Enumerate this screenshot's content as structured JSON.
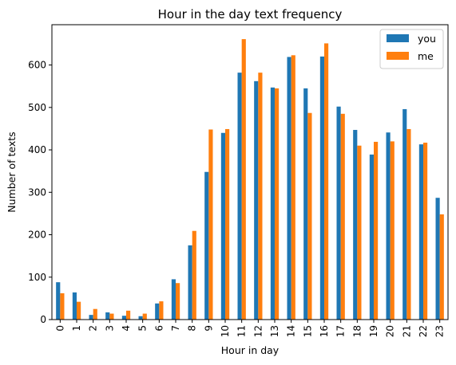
{
  "chart_data": {
    "type": "bar",
    "title": "Hour in the day text frequency",
    "xlabel": "Hour in day",
    "ylabel": "Number of texts",
    "ylim": [
      0,
      695
    ],
    "yticks": [
      0,
      100,
      200,
      300,
      400,
      500,
      600
    ],
    "categories": [
      "0",
      "1",
      "2",
      "3",
      "4",
      "5",
      "6",
      "7",
      "8",
      "9",
      "10",
      "11",
      "12",
      "13",
      "14",
      "15",
      "16",
      "17",
      "18",
      "19",
      "20",
      "21",
      "22",
      "23"
    ],
    "series": [
      {
        "name": "you",
        "color": "#1f77b4",
        "values": [
          88,
          64,
          11,
          17,
          9,
          8,
          38,
          95,
          175,
          348,
          440,
          582,
          562,
          547,
          619,
          545,
          620,
          502,
          447,
          389,
          441,
          496,
          413,
          287
        ]
      },
      {
        "name": "me",
        "color": "#ff7f0e",
        "values": [
          62,
          42,
          25,
          14,
          21,
          14,
          43,
          86,
          209,
          448,
          449,
          661,
          582,
          545,
          623,
          487,
          651,
          485,
          410,
          419,
          420,
          449,
          417,
          248
        ]
      }
    ],
    "legend": "top-right",
    "grid": false
  }
}
